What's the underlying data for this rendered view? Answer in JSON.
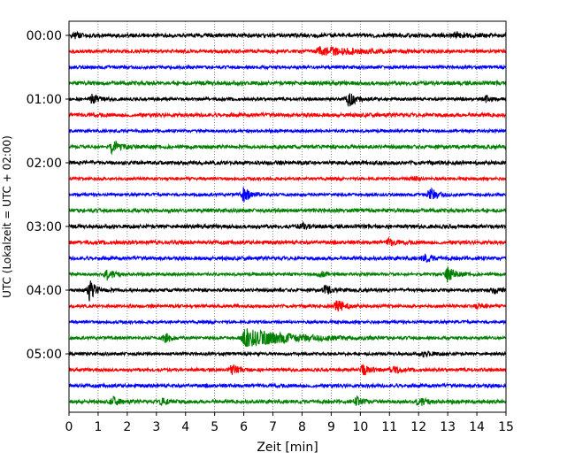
{
  "chart_data": {
    "type": "line",
    "chart_kind": "helicorder",
    "xlabel": "Zeit  [min]",
    "ylabel": "UTC (Lokalzeit = UTC + 02:00)",
    "xlim": [
      0,
      15
    ],
    "x_ticks": [
      "0",
      "1",
      "2",
      "3",
      "4",
      "5",
      "6",
      "7",
      "8",
      "9",
      "10",
      "11",
      "12",
      "13",
      "14",
      "15"
    ],
    "y_ticks": [
      "00:00",
      "01:00",
      "02:00",
      "03:00",
      "04:00",
      "05:00"
    ],
    "minutes_per_line": 15,
    "trace_count": 24,
    "trace_colors": [
      "#000000",
      "#ff0000",
      "#0000ff",
      "#008000"
    ],
    "grid": "vertical dotted lines at every minute",
    "events": [
      {
        "trace": 0,
        "minute": 0.2,
        "amplitude": 0.5
      },
      {
        "trace": 0,
        "minute": 13.3,
        "amplitude": 0.6
      },
      {
        "trace": 1,
        "minute": 8.6,
        "amplitude": 0.8,
        "duration": 2.5
      },
      {
        "trace": 4,
        "minute": 0.8,
        "amplitude": 0.9
      },
      {
        "trace": 4,
        "minute": 9.6,
        "amplitude": 1.6
      },
      {
        "trace": 4,
        "minute": 14.3,
        "amplitude": 0.6
      },
      {
        "trace": 7,
        "minute": 1.5,
        "amplitude": 1.3
      },
      {
        "trace": 9,
        "minute": 11.8,
        "amplitude": 0.5
      },
      {
        "trace": 10,
        "minute": 6.0,
        "amplitude": 1.4
      },
      {
        "trace": 10,
        "minute": 12.4,
        "amplitude": 1.3
      },
      {
        "trace": 12,
        "minute": 8.0,
        "amplitude": 0.6
      },
      {
        "trace": 13,
        "minute": 11.0,
        "amplitude": 0.6
      },
      {
        "trace": 14,
        "minute": 12.2,
        "amplitude": 0.7
      },
      {
        "trace": 15,
        "minute": 1.3,
        "amplitude": 1.2
      },
      {
        "trace": 15,
        "minute": 8.6,
        "amplitude": 0.6
      },
      {
        "trace": 15,
        "minute": 13.0,
        "amplitude": 1.5
      },
      {
        "trace": 16,
        "minute": 0.7,
        "amplitude": 2.0
      },
      {
        "trace": 16,
        "minute": 8.8,
        "amplitude": 0.9
      },
      {
        "trace": 16,
        "minute": 14.6,
        "amplitude": 0.6
      },
      {
        "trace": 17,
        "minute": 9.2,
        "amplitude": 1.6
      },
      {
        "trace": 17,
        "minute": 14.0,
        "amplitude": 0.5
      },
      {
        "trace": 19,
        "minute": 3.3,
        "amplitude": 1.0
      },
      {
        "trace": 19,
        "minute": 6.0,
        "amplitude": 1.9,
        "duration": 3.0
      },
      {
        "trace": 20,
        "minute": 12.2,
        "amplitude": 0.6
      },
      {
        "trace": 21,
        "minute": 5.6,
        "amplitude": 0.9
      },
      {
        "trace": 21,
        "minute": 10.1,
        "amplitude": 1.2
      },
      {
        "trace": 21,
        "minute": 11.1,
        "amplitude": 0.9
      },
      {
        "trace": 23,
        "minute": 1.5,
        "amplitude": 0.8
      },
      {
        "trace": 23,
        "minute": 3.2,
        "amplitude": 0.8
      },
      {
        "trace": 23,
        "minute": 9.9,
        "amplitude": 0.9
      },
      {
        "trace": 23,
        "minute": 12.0,
        "amplitude": 0.9
      }
    ]
  }
}
